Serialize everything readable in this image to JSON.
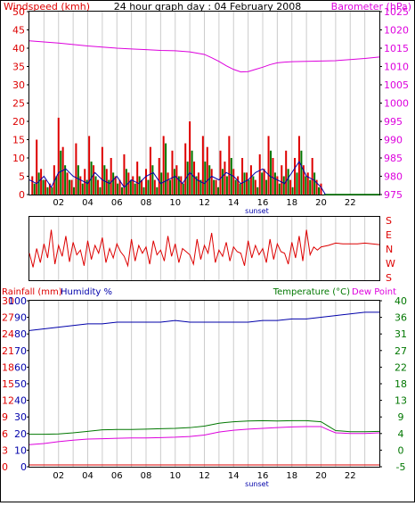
{
  "colors": {
    "wind_gust": "#dd0000",
    "wind_avg": "#007700",
    "wind_speed": "#0000aa",
    "barometer": "#dd00dd",
    "direction": "#dd0000",
    "humidity": "#0000aa",
    "temperature": "#007700",
    "dew_point": "#dd00dd",
    "rainfall": "#dd0000",
    "grid": "#cccccc",
    "frame": "#000000"
  },
  "chart_data": [
    {
      "type": "bar",
      "title": "24 hour graph day : 04 February 2008",
      "ylabel": "Windspeed (kmh)",
      "y2label": "Barometer (hPa)",
      "ylim": [
        0,
        50
      ],
      "y2lim": [
        975,
        1025
      ],
      "yticks": [
        "0",
        "5",
        "10",
        "15",
        "20",
        "25",
        "30",
        "35",
        "40",
        "45",
        "50"
      ],
      "y2ticks": [
        "975",
        "980",
        "985",
        "990",
        "995",
        "1000",
        "1005",
        "1010",
        "1015",
        "1020",
        "1025"
      ],
      "xticks": [
        "02",
        "04",
        "06",
        "08",
        "10",
        "12",
        "14",
        "16",
        "18",
        "20",
        "22"
      ],
      "annotation": "sunset",
      "series": [
        {
          "name": "Windspeed (kmh)",
          "kind": "bars",
          "x": [
            0.2,
            0.5,
            0.8,
            1.1,
            1.4,
            1.7,
            2.0,
            2.3,
            2.6,
            2.9,
            3.2,
            3.5,
            3.8,
            4.1,
            4.4,
            4.7,
            5.0,
            5.3,
            5.6,
            5.9,
            6.2,
            6.5,
            6.8,
            7.1,
            7.4,
            7.7,
            8.0,
            8.3,
            8.6,
            8.9,
            9.2,
            9.5,
            9.8,
            10.1,
            10.4,
            10.7,
            11.0,
            11.3,
            11.6,
            11.9,
            12.2,
            12.5,
            12.8,
            13.1,
            13.4,
            13.7,
            14.0,
            14.3,
            14.6,
            14.9,
            15.2,
            15.5,
            15.8,
            16.1,
            16.4,
            16.7,
            17.0,
            17.3,
            17.6,
            17.9,
            18.2,
            18.5,
            18.8,
            19.1,
            19.4,
            19.7,
            20.0
          ],
          "values": [
            5,
            15,
            7,
            4,
            3,
            8,
            21,
            13,
            6,
            4,
            14,
            5,
            7,
            16,
            8,
            4,
            13,
            7,
            10,
            5,
            4,
            11,
            6,
            5,
            9,
            4,
            7,
            13,
            4,
            10,
            16,
            6,
            12,
            8,
            5,
            14,
            20,
            9,
            6,
            16,
            13,
            7,
            4,
            12,
            9,
            16,
            7,
            5,
            10,
            6,
            8,
            4,
            11,
            7,
            16,
            10,
            5,
            8,
            12,
            4,
            10,
            16,
            8,
            6,
            10,
            4,
            3
          ]
        },
        {
          "name": "Windspeed average",
          "kind": "bars",
          "x": [
            0.35,
            0.65,
            0.95,
            1.25,
            1.55,
            1.85,
            2.15,
            2.45,
            2.75,
            3.05,
            3.35,
            3.65,
            3.95,
            4.25,
            4.55,
            4.85,
            5.15,
            5.45,
            5.75,
            6.05,
            6.35,
            6.65,
            6.95,
            7.25,
            7.55,
            7.85,
            8.15,
            8.45,
            8.75,
            9.05,
            9.35,
            9.65,
            9.95,
            10.25,
            10.55,
            10.85,
            11.15,
            11.45,
            11.75,
            12.05,
            12.35,
            12.65,
            12.95,
            13.25,
            13.55,
            13.85,
            14.15,
            14.45,
            14.75,
            15.05,
            15.35,
            15.65,
            15.95,
            16.25,
            16.55,
            16.85,
            17.15,
            17.45,
            17.75,
            18.05,
            18.35,
            18.65,
            18.95,
            19.25,
            19.55,
            19.85
          ],
          "values": [
            3,
            6,
            4,
            2,
            2,
            5,
            12,
            8,
            4,
            2,
            8,
            3,
            4,
            9,
            5,
            2,
            8,
            4,
            6,
            3,
            2,
            7,
            4,
            3,
            5,
            2,
            4,
            8,
            2,
            6,
            14,
            4,
            7,
            5,
            3,
            9,
            12,
            5,
            4,
            9,
            8,
            4,
            2,
            7,
            5,
            10,
            4,
            3,
            6,
            4,
            5,
            2,
            6,
            4,
            12,
            6,
            3,
            5,
            7,
            2,
            6,
            12,
            5,
            4,
            6,
            2
          ]
        },
        {
          "name": "Wind speed trace",
          "kind": "line",
          "x": [
            0,
            0.5,
            1,
            1.5,
            2,
            2.5,
            3,
            3.5,
            4,
            4.5,
            5,
            5.5,
            6,
            6.5,
            7,
            7.5,
            8,
            8.5,
            9,
            9.5,
            10,
            10.5,
            11,
            11.5,
            12,
            12.5,
            13,
            13.5,
            14,
            14.5,
            15,
            15.5,
            16,
            16.5,
            17,
            17.5,
            18,
            18.5,
            19,
            19.5,
            20,
            20.3
          ],
          "values": [
            4,
            3,
            5,
            2,
            6,
            7,
            5,
            4,
            3,
            6,
            4,
            3,
            5,
            2,
            4,
            3,
            5,
            6,
            3,
            4,
            5,
            3,
            6,
            4,
            3,
            5,
            4,
            6,
            5,
            3,
            4,
            6,
            7,
            5,
            4,
            3,
            6,
            9,
            5,
            4,
            2,
            0
          ]
        },
        {
          "name": "Barometer (hPa)",
          "axis": "right",
          "kind": "line",
          "x": [
            0,
            1,
            2,
            3,
            4,
            5,
            6,
            7,
            8,
            9,
            10,
            11,
            12,
            12.5,
            13,
            13.5,
            14,
            14.5,
            15,
            15.5,
            16,
            16.5,
            17,
            17.5,
            18,
            19,
            20,
            21,
            22,
            23,
            24
          ],
          "values": [
            1017.0,
            1016.7,
            1016.4,
            1016.0,
            1015.6,
            1015.3,
            1015.0,
            1014.8,
            1014.6,
            1014.4,
            1014.3,
            1014.0,
            1013.3,
            1012.4,
            1011.4,
            1010.2,
            1009.2,
            1008.5,
            1008.6,
            1009.2,
            1009.8,
            1010.5,
            1011.0,
            1011.2,
            1011.3,
            1011.4,
            1011.5,
            1011.6,
            1011.9,
            1012.2,
            1012.6
          ]
        }
      ]
    },
    {
      "type": "line",
      "ylabel_right": [
        "S",
        "E",
        "N",
        "W",
        "S"
      ],
      "ylim": [
        0,
        360
      ],
      "series": [
        {
          "name": "Wind direction",
          "x": [
            0,
            0.25,
            0.5,
            0.75,
            1,
            1.25,
            1.5,
            1.75,
            2,
            2.25,
            2.5,
            2.75,
            3,
            3.25,
            3.5,
            3.75,
            4,
            4.25,
            4.5,
            4.75,
            5,
            5.25,
            5.5,
            5.75,
            6,
            6.25,
            6.5,
            6.75,
            7,
            7.25,
            7.5,
            7.75,
            8,
            8.25,
            8.5,
            8.75,
            9,
            9.25,
            9.5,
            9.75,
            10,
            10.25,
            10.5,
            10.75,
            11,
            11.25,
            11.5,
            11.75,
            12,
            12.25,
            12.5,
            12.75,
            13,
            13.25,
            13.5,
            13.75,
            14,
            14.25,
            14.5,
            14.75,
            15,
            15.25,
            15.5,
            15.75,
            16,
            16.25,
            16.5,
            16.75,
            17,
            17.25,
            17.5,
            17.75,
            18,
            18.25,
            18.5,
            18.75,
            19,
            19.25,
            19.5,
            19.75,
            20,
            20.5,
            21,
            21.5,
            22,
            22.5,
            23,
            23.5,
            24
          ],
          "values": [
            150,
            60,
            180,
            90,
            210,
            120,
            300,
            80,
            200,
            130,
            260,
            95,
            220,
            140,
            170,
            70,
            230,
            110,
            200,
            150,
            250,
            90,
            180,
            120,
            210,
            160,
            130,
            70,
            240,
            100,
            200,
            150,
            190,
            80,
            230,
            140,
            170,
            100,
            260,
            130,
            210,
            90,
            180,
            160,
            140,
            80,
            240,
            110,
            200,
            150,
            280,
            90,
            170,
            130,
            220,
            100,
            190,
            160,
            150,
            70,
            230,
            120,
            200,
            140,
            180,
            90,
            240,
            110,
            210,
            160,
            150,
            80,
            220,
            120,
            260,
            100,
            300,
            140,
            190,
            170,
            190,
            200,
            215,
            210,
            210,
            210,
            215,
            210,
            205
          ]
        }
      ]
    },
    {
      "type": "line",
      "ylabels_left": [
        "Rainfall (mm)",
        "Humidity %"
      ],
      "ylabel_right": "Temperature (°C)",
      "ylabel_right2": "Dew Point",
      "ylim": [
        -5,
        40
      ],
      "y_rain_ticks": [
        "0",
        "3",
        "6",
        "9",
        "12",
        "15",
        "18",
        "21",
        "24",
        "27",
        "30"
      ],
      "y_humidity_ticks": [
        "0",
        "10",
        "20",
        "30",
        "40",
        "50",
        "60",
        "70",
        "80",
        "90",
        "100"
      ],
      "y_temp_ticks": [
        "-5",
        "0",
        "4",
        "9",
        "13",
        "18",
        "22",
        "27",
        "31",
        "36",
        "40"
      ],
      "xticks": [
        "02",
        "04",
        "06",
        "08",
        "10",
        "12",
        "14",
        "16",
        "18",
        "20",
        "22"
      ],
      "annotation": "sunset",
      "series": [
        {
          "name": "Humidity %",
          "axis": "humidity",
          "x": [
            0,
            1,
            2,
            3,
            4,
            5,
            6,
            7,
            8,
            9,
            10,
            11,
            12,
            13,
            14,
            15,
            16,
            17,
            18,
            19,
            20,
            21,
            22,
            23,
            24
          ],
          "values": [
            81,
            82,
            83,
            84,
            85,
            85,
            86,
            86,
            86,
            86,
            87,
            86,
            86,
            86,
            86,
            86,
            87,
            87,
            88,
            88,
            89,
            90,
            91,
            92,
            92
          ]
        },
        {
          "name": "Temperature (°C)",
          "axis": "temperature",
          "x": [
            0,
            1,
            2,
            3,
            4,
            5,
            6,
            7,
            8,
            9,
            10,
            11,
            12,
            13,
            14,
            15,
            16,
            17,
            18,
            19,
            20,
            20.5,
            21,
            22,
            23,
            24
          ],
          "values": [
            3.8,
            3.8,
            3.9,
            4.2,
            4.6,
            5.0,
            5.1,
            5.1,
            5.2,
            5.3,
            5.4,
            5.6,
            6.0,
            6.8,
            7.2,
            7.4,
            7.5,
            7.4,
            7.5,
            7.5,
            7.2,
            6.0,
            4.8,
            4.5,
            4.5,
            4.6
          ]
        },
        {
          "name": "Dew Point",
          "axis": "temperature",
          "x": [
            0,
            1,
            2,
            3,
            4,
            5,
            6,
            7,
            8,
            9,
            10,
            11,
            12,
            13,
            14,
            15,
            16,
            17,
            18,
            19,
            20,
            20.5,
            21,
            22,
            23,
            24
          ],
          "values": [
            1.0,
            1.3,
            1.8,
            2.2,
            2.5,
            2.6,
            2.7,
            2.8,
            2.8,
            2.9,
            3.0,
            3.2,
            3.6,
            4.4,
            4.9,
            5.2,
            5.4,
            5.6,
            5.8,
            5.9,
            5.9,
            5.0,
            4.2,
            4.0,
            4.0,
            4.2
          ]
        },
        {
          "name": "Rainfall (mm)",
          "axis": "rain",
          "x": [
            0,
            24
          ],
          "values": [
            0,
            0
          ]
        }
      ]
    }
  ]
}
